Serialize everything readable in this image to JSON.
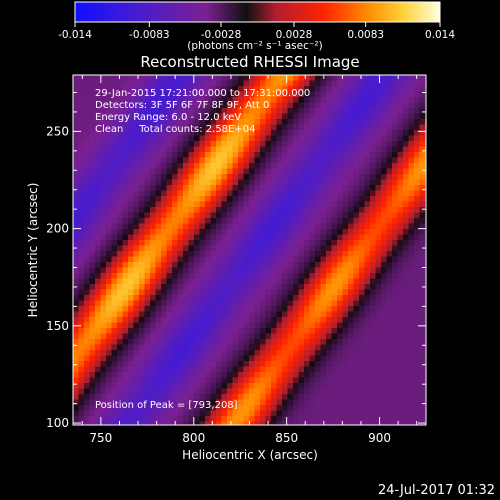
{
  "colorbar": {
    "ticks": [
      "-0.014",
      "-0.0083",
      "-0.0028",
      "0.0028",
      "0.0083",
      "0.014"
    ],
    "tick_values": [
      -0.014,
      -0.0083,
      -0.0028,
      0.0028,
      0.0083,
      0.014
    ],
    "range": [
      -0.014,
      0.014
    ],
    "units_label": "(photons cm⁻² s⁻¹ asec⁻²)",
    "colormap": [
      "#1010ff",
      "#4a1ccc",
      "#7a2090",
      "#b01e30",
      "#ff2200",
      "#ff8a00",
      "#ffd23a",
      "#ffffd6"
    ]
  },
  "chart_data": {
    "type": "heatmap",
    "title": "Reconstructed RHESSI Image",
    "xlabel": "Heliocentric X (arcsec)",
    "ylabel": "Heliocentric Y (arcsec)",
    "xlim": [
      735,
      925
    ],
    "ylim": [
      99,
      279
    ],
    "x_ticks": [
      750,
      800,
      850,
      900
    ],
    "y_ticks": [
      100,
      150,
      200,
      250
    ],
    "x_tick_labels": [
      "750",
      "800",
      "850",
      "900"
    ],
    "y_tick_labels": [
      "100",
      "150",
      "200",
      "250"
    ],
    "peak": [
      793,
      208
    ],
    "bands": [
      {
        "name": "bright-ridge",
        "offset_arcsec": 0,
        "peak_value": 0.014
      },
      {
        "name": "bright-ridge",
        "offset_arcsec": 112,
        "peak_value": 0.012
      },
      {
        "name": "dark-trough",
        "offset_arcsec": 55,
        "peak_value": -0.006
      },
      {
        "name": "dark-trough",
        "offset_arcsec": -55,
        "peak_value": -0.006
      }
    ],
    "band_slope": 1.3
  },
  "annotations": [
    "29-Jan-2015 17:21:00.000 to 17:31:00.000",
    "Detectors: 3F 5F 6F 7F 8F 9F, Att 0",
    "Energy Range: 6.0 - 12.0 keV",
    "Clean     Total counts: 2.58E+04"
  ],
  "peak_label": "Position of Peak = [793,208]",
  "footer_date": "24-Jul-2017 01:32"
}
